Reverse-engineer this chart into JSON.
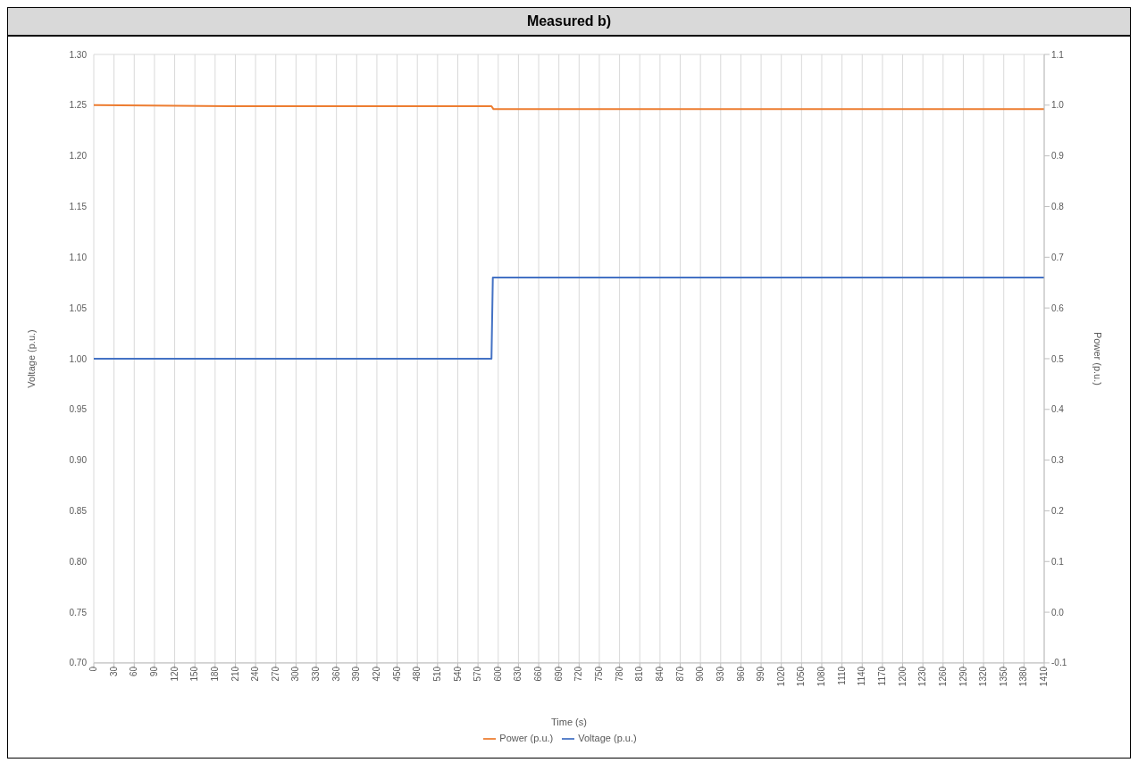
{
  "chart_data": {
    "type": "line",
    "title": "Measured b)",
    "xlabel": "Time (s)",
    "ylabel": "Voltage (p.u.)",
    "y2label": "Power (p.u.)",
    "xlim": [
      0,
      1410
    ],
    "xticks": [
      0,
      30,
      60,
      90,
      120,
      150,
      180,
      210,
      240,
      270,
      300,
      330,
      360,
      390,
      420,
      450,
      480,
      510,
      540,
      570,
      600,
      630,
      660,
      690,
      720,
      750,
      780,
      810,
      840,
      870,
      900,
      930,
      960,
      990,
      1020,
      1050,
      1080,
      1110,
      1140,
      1170,
      1200,
      1230,
      1260,
      1290,
      1320,
      1350,
      1380,
      1410
    ],
    "ylim": [
      0.7,
      1.3
    ],
    "yticks": [
      {
        "value": 0.7,
        "label": "0.70"
      },
      {
        "value": 0.75,
        "label": "0.75"
      },
      {
        "value": 0.8,
        "label": "0.80"
      },
      {
        "value": 0.85,
        "label": "0.85"
      },
      {
        "value": 0.9,
        "label": "0.90"
      },
      {
        "value": 0.95,
        "label": "0.95"
      },
      {
        "value": 1.0,
        "label": "1.00"
      },
      {
        "value": 1.05,
        "label": "1.05"
      },
      {
        "value": 1.1,
        "label": "1.10"
      },
      {
        "value": 1.15,
        "label": "1.15"
      },
      {
        "value": 1.2,
        "label": "1.20"
      },
      {
        "value": 1.25,
        "label": "1.25"
      },
      {
        "value": 1.3,
        "label": "1.30"
      }
    ],
    "y2lim": [
      -0.1,
      1.1
    ],
    "y2ticks": [
      -0.1,
      {
        "value": 0,
        "label": "0.0"
      },
      0.1,
      0.2,
      0.3,
      0.4,
      0.5,
      0.6,
      0.7,
      0.8,
      0.9,
      {
        "value": 1,
        "label": "1.0"
      },
      1.1
    ],
    "grid": true,
    "legend": "bottom",
    "marker": "none",
    "line_style": "solid",
    "series": [
      {
        "name": "Voltage (p.u.)",
        "color": "#4472c4",
        "x": [
          0,
          590,
          592,
          1410
        ],
        "values": [
          1.0,
          1.0,
          1.08,
          1.08
        ]
      },
      {
        "name": "Power (p.u.)",
        "color": "#ed7d31",
        "axis": "y2",
        "x": [
          0,
          200,
          590,
          593,
          1410
        ],
        "values": [
          1.0,
          0.998,
          0.998,
          0.992,
          0.992
        ]
      }
    ]
  }
}
